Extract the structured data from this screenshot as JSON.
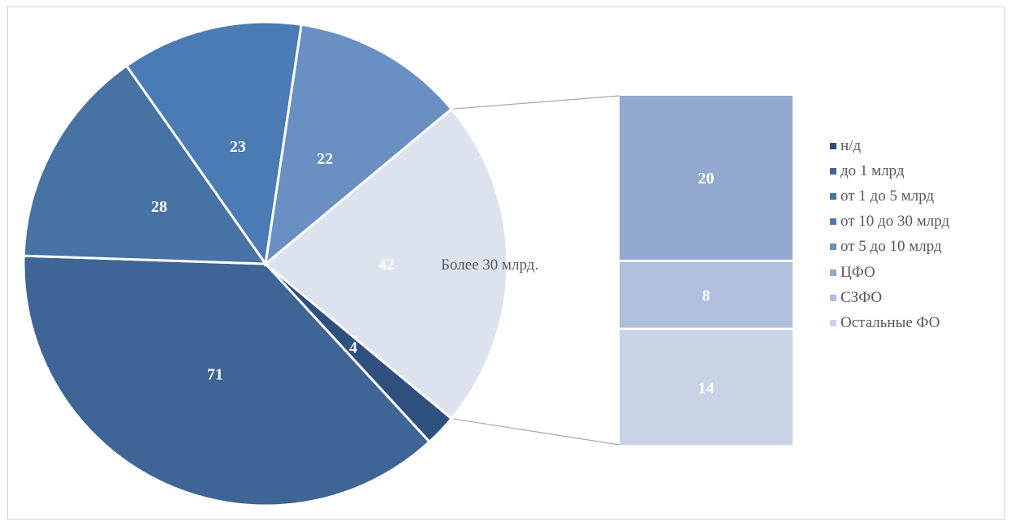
{
  "chart_data": {
    "type": "pie",
    "subtype": "pie-of-bar",
    "title": "",
    "slices": [
      {
        "name": "н/д",
        "value": 4,
        "color": "#2f4f7f"
      },
      {
        "name": "до 1 млрд",
        "value": 71,
        "color": "#3e6595"
      },
      {
        "name": "от 1 до 5 млрд",
        "value": 28,
        "color": "#4672a4"
      },
      {
        "name": "от 10 до 30 млрд",
        "value": 23,
        "color": "#4a7bb5"
      },
      {
        "name": "от 5 до 10 млрд",
        "value": 22,
        "color": "#6a8fc2"
      },
      {
        "name": "Более 30 млрд.",
        "value": 42,
        "color": "#dce3ef"
      }
    ],
    "breakdown": {
      "of_slice": "Более 30 млрд.",
      "callout_label": "Более 30 млрд.",
      "segments": [
        {
          "name": "ЦФО",
          "value": 20,
          "color": "#94a9d0"
        },
        {
          "name": "СЗФО",
          "value": 8,
          "color": "#afbfdc"
        },
        {
          "name": "Остальные ФО",
          "value": 14,
          "color": "#c9d3e6"
        }
      ]
    },
    "legend": {
      "position": "right",
      "entries": [
        {
          "label": "н/д",
          "color": "#2f4f7f"
        },
        {
          "label": "до 1 млрд",
          "color": "#3e6595"
        },
        {
          "label": "от 1 до 5 млрд",
          "color": "#4672a4"
        },
        {
          "label": "от 10 до 30 млрд",
          "color": "#4a7bb5"
        },
        {
          "label": "от 5 до 10 млрд",
          "color": "#6a8fc2"
        },
        {
          "label": "ЦФО",
          "color": "#94a9d0"
        },
        {
          "label": "СЗФО",
          "color": "#afbfdc"
        },
        {
          "label": "Остальные ФО",
          "color": "#c9d3e6"
        }
      ]
    }
  }
}
